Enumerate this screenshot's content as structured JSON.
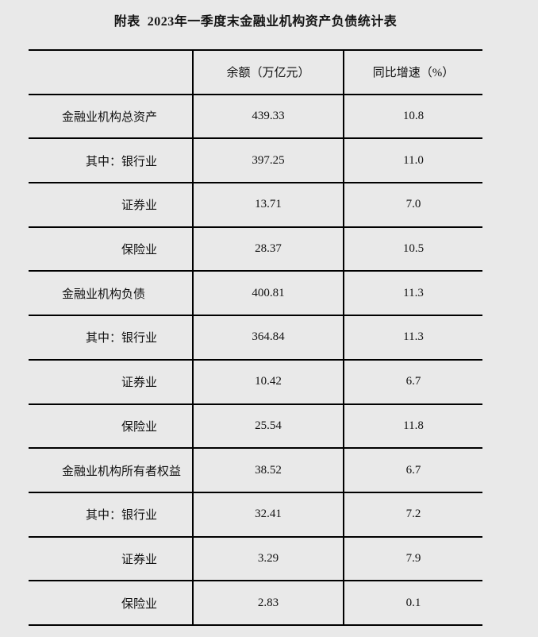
{
  "page": {
    "background_color": "#e9e9e9",
    "border_color": "#000000",
    "text_color": "#111111"
  },
  "title": "附表  2023年一季度末金融业机构资产负债统计表",
  "table": {
    "header": {
      "item": "",
      "balance": "余额（万亿元）",
      "growth": "同比增速（%）"
    },
    "rows": [
      {
        "label": "金融业机构总资产",
        "balance": "439.33",
        "growth": "10.8"
      },
      {
        "label": "　　其中：银行业",
        "balance": "397.25",
        "growth": "11.0"
      },
      {
        "label": "　　　　　证券业",
        "balance": "13.71",
        "growth": "7.0"
      },
      {
        "label": "　　　　　保险业",
        "balance": "28.37",
        "growth": "10.5"
      },
      {
        "label": "金融业机构负债",
        "balance": "400.81",
        "growth": "11.3"
      },
      {
        "label": "　　其中：银行业",
        "balance": "364.84",
        "growth": "11.3"
      },
      {
        "label": "　　　　　证券业",
        "balance": "10.42",
        "growth": "6.7"
      },
      {
        "label": "　　　　　保险业",
        "balance": "25.54",
        "growth": "11.8"
      },
      {
        "label": "金融业机构所有者权益",
        "balance": "38.52",
        "growth": "6.7"
      },
      {
        "label": "　　其中：银行业",
        "balance": "32.41",
        "growth": "7.2"
      },
      {
        "label": "　　　　　证券业",
        "balance": "3.29",
        "growth": "7.9"
      },
      {
        "label": "　　　　　保险业",
        "balance": "2.83",
        "growth": "0.1"
      }
    ]
  }
}
